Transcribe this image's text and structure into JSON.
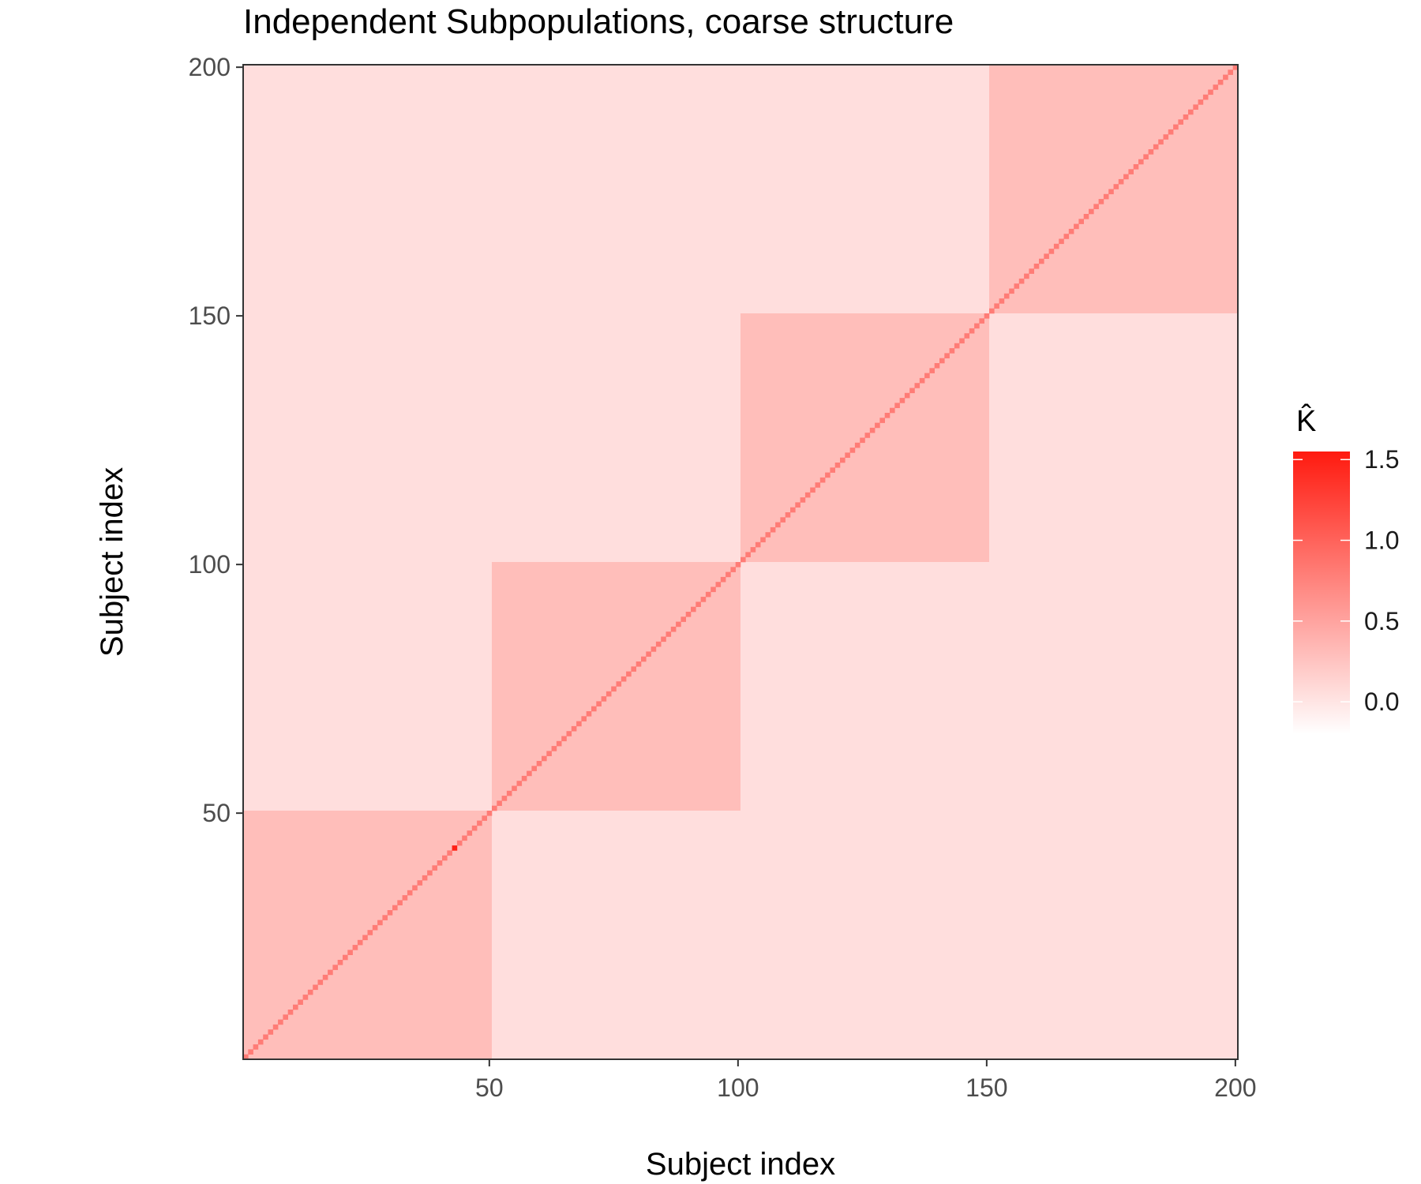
{
  "chart_data": {
    "type": "heatmap",
    "title": "Independent Subpopulations, coarse structure",
    "xlabel": "Subject index",
    "ylabel": "Subject index",
    "n": 200,
    "x_ticks": [
      50,
      100,
      150,
      200
    ],
    "y_ticks": [
      50,
      100,
      150,
      200
    ],
    "xlim": [
      1,
      200
    ],
    "ylim": [
      1,
      200
    ],
    "blocks": [
      {
        "from": 1,
        "to": 50,
        "value": 0.3
      },
      {
        "from": 51,
        "to": 100,
        "value": 0.3
      },
      {
        "from": 101,
        "to": 150,
        "value": 0.3
      },
      {
        "from": 151,
        "to": 200,
        "value": 0.3
      }
    ],
    "between_block_value": 0.05,
    "diagonal_value": 0.8,
    "diagonal_max": {
      "index": 43,
      "value": 1.5
    },
    "legend": {
      "title": "K̂",
      "ticks": [
        0.0,
        0.5,
        1.0,
        1.5
      ],
      "tick_labels": [
        "0.0",
        "0.5",
        "1.0",
        "1.5"
      ],
      "range": [
        -0.2,
        1.55
      ],
      "low_color": "#ffffff",
      "high_color": "#ff1a0f",
      "placement": "right"
    },
    "grid": false
  }
}
